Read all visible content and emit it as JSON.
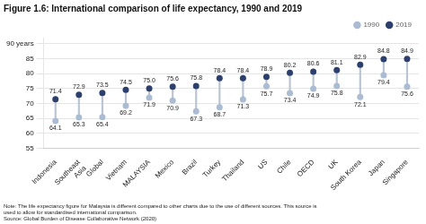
{
  "chart_data": {
    "type": "dumbbell",
    "title": "Figure 1.6: International comparison of life expectancy, 1990 and 2019",
    "annotations": [
      "Note: The life expectancy figure for Malaysia is different compared to other charts due to the use of different sources. This source is\nused to allow for standardised international comparison.\nSource: Global Burden of Disease Collaborative Network (2020)"
    ],
    "categories": [
      "Indonesia",
      "Southeast\nAsia",
      "Global",
      "Vietnam",
      "MALAYSIA",
      "Mexico",
      "Brazil",
      "Turkey",
      "Thailand",
      "US",
      "Chile",
      "OECD",
      "UK",
      "South Korea",
      "Japan",
      "Singapore"
    ],
    "series": [
      {
        "name": "1990",
        "color": "#aabbd4",
        "values": [
          64.1,
          65.3,
          65.4,
          69.2,
          71.9,
          70.9,
          67.3,
          68.7,
          71.3,
          75.7,
          73.4,
          74.9,
          75.8,
          72.1,
          79.4,
          75.6
        ],
        "value_labels": [
          "64.1",
          "65.3",
          "65.4",
          "69.2",
          "71.9",
          "70.9",
          "67.3",
          "68.7",
          "71.3",
          "75.7",
          "73.4",
          "74.9",
          "75.8",
          "72.1",
          "79.4",
          "75.6"
        ]
      },
      {
        "name": "2019",
        "color": "#2b4070",
        "values": [
          71.4,
          72.9,
          73.5,
          74.5,
          75.0,
          75.6,
          75.8,
          78.4,
          78.4,
          78.9,
          80.2,
          80.6,
          81.1,
          82.9,
          84.8,
          84.9
        ],
        "value_labels": [
          "71.4",
          "72.9",
          "73.5",
          "74.5",
          "75.0",
          "75.6",
          "75.8",
          "78.4",
          "78.4",
          "78.9",
          "80.2",
          "80.6",
          "81.1",
          "82.9",
          "84.8",
          "84.9"
        ]
      }
    ],
    "color": "#b8c4d8",
    "ylim": [
      55,
      92
    ],
    "yticks": [
      55,
      60,
      65,
      70,
      75,
      80,
      85,
      {
        "value": 90,
        "label": "90 years"
      }
    ],
    "grid": true,
    "legend": "upper right",
    "data_labels": true
  }
}
